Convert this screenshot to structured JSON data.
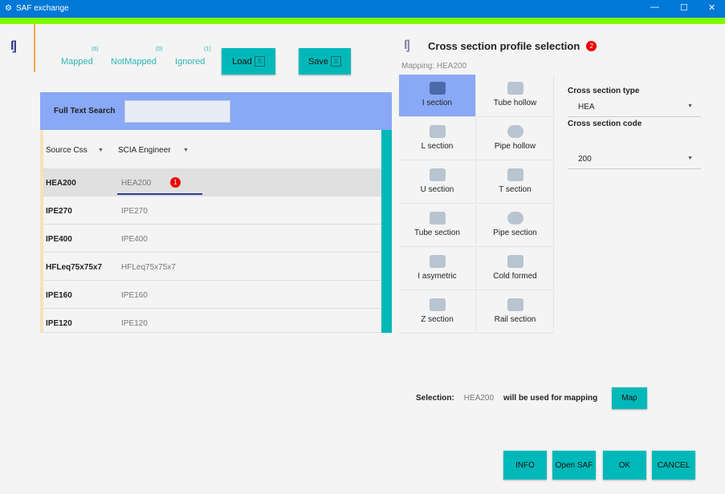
{
  "window": {
    "title": "SAF exchange",
    "minimize": "—",
    "maximize": "☐",
    "close": "✕"
  },
  "toolbar": {
    "tabs": [
      {
        "label": "Mapped",
        "count": "(6)"
      },
      {
        "label": "NotMapped",
        "count": "(0)"
      },
      {
        "label": "Ignored",
        "count": "(1)"
      }
    ],
    "load": "Load",
    "save": "Save",
    "excel_glyph": "X"
  },
  "logo": "I]",
  "search": {
    "label": "Full Text Search",
    "value": ""
  },
  "table": {
    "columns": [
      "Source Css",
      "SCIA Engineer"
    ],
    "filter_glyph": "▼",
    "rows": [
      {
        "source": "HEA200",
        "scia": "HEA200",
        "badge": "1"
      },
      {
        "source": "IPE270",
        "scia": "IPE270"
      },
      {
        "source": "IPE400",
        "scia": "IPE400"
      },
      {
        "source": "HFLeq75x75x7",
        "scia": "HFLeq75x75x7"
      },
      {
        "source": "IPE160",
        "scia": "IPE160"
      },
      {
        "source": "IPE120",
        "scia": "IPE120"
      }
    ]
  },
  "panel": {
    "title": "Cross section profile selection",
    "badge": "2",
    "mapping": "Mapping: HEA200",
    "sections": [
      "I section",
      "Tube hollow",
      "L section",
      "Pipe hollow",
      "U section",
      "T section",
      "Tube section",
      "Pipe section",
      "I asymetric",
      "Cold formed",
      "Z section",
      "Rail section"
    ],
    "selected": "I section",
    "type_label": "Cross section type",
    "type_value": "HEA",
    "code_label": "Cross section code",
    "code_value": "200"
  },
  "selection": {
    "label": "Selection:",
    "value": "HEA200",
    "suffix": "will be used for mapping",
    "map": "Map"
  },
  "footer": {
    "info": "INFO",
    "open_saf": "Open SAF",
    "ok": "OK",
    "cancel": "CANCEL"
  },
  "colors": {
    "titlebar": "#0078d7",
    "accent_bar": "#7cfc00",
    "button": "#00b8b8",
    "selected": "#89a8f5"
  }
}
